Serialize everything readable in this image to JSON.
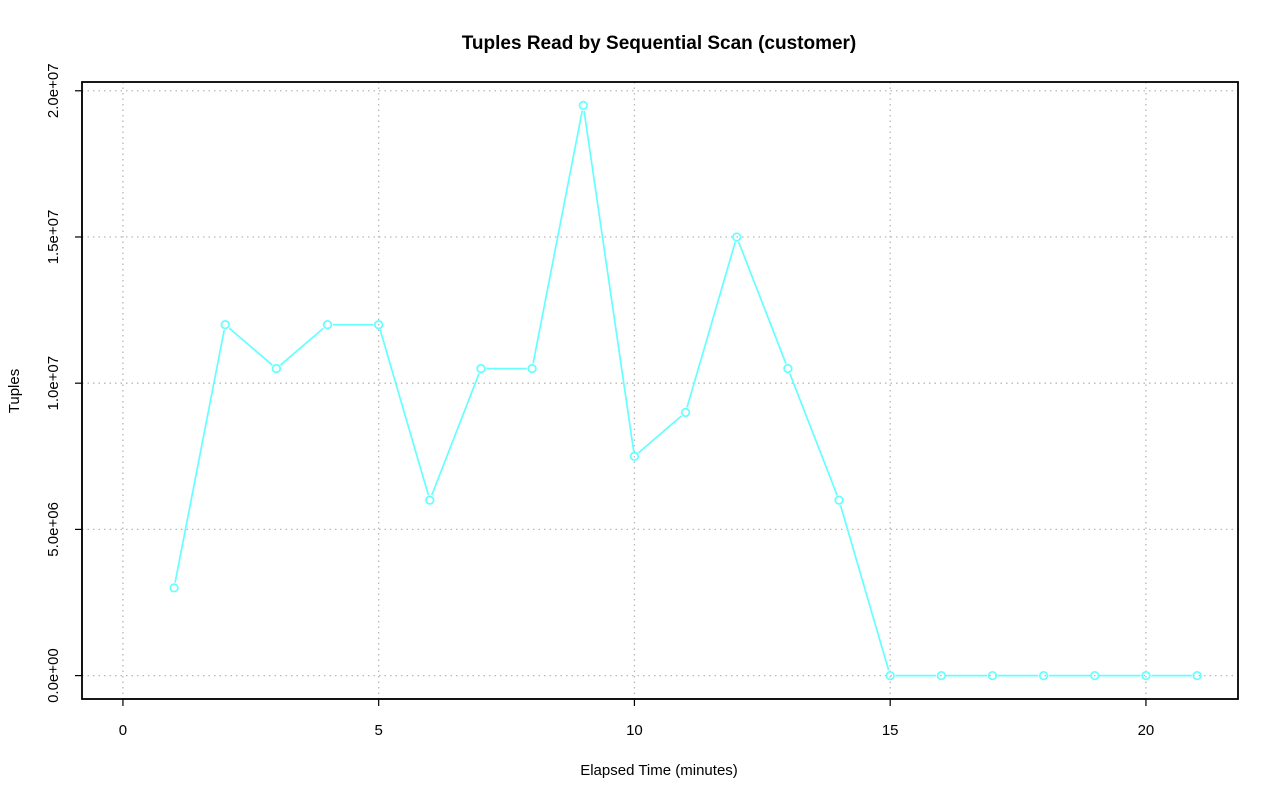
{
  "chart_data": {
    "type": "line",
    "title": "Tuples Read by Sequential Scan (customer)",
    "xlabel": "Elapsed Time (minutes)",
    "ylabel": "Tuples",
    "xlim": [
      -0.8,
      21.8
    ],
    "ylim": [
      -800000,
      20300000
    ],
    "x_ticks": [
      0,
      5,
      10,
      15,
      20
    ],
    "x_tick_labels": [
      "0",
      "5",
      "10",
      "15",
      "20"
    ],
    "y_ticks": [
      0,
      5000000,
      10000000,
      15000000,
      20000000
    ],
    "y_tick_labels": [
      "0.0e+00",
      "5.0e+06",
      "1.0e+07",
      "1.5e+07",
      "2.0e+07"
    ],
    "grid": true,
    "series": [
      {
        "color": "#66ffff",
        "marker": "circle",
        "x": [
          1,
          2,
          3,
          4,
          5,
          6,
          7,
          8,
          9,
          10,
          11,
          12,
          13,
          14,
          15,
          16,
          17,
          18,
          19,
          20,
          21
        ],
        "values": [
          3000000,
          12000000,
          10500000,
          12000000,
          12000000,
          6000000,
          10500000,
          10500000,
          19500000,
          7500000,
          9000000,
          15000000,
          10500000,
          6000000,
          0,
          0,
          0,
          0,
          0,
          0,
          0
        ]
      }
    ]
  }
}
